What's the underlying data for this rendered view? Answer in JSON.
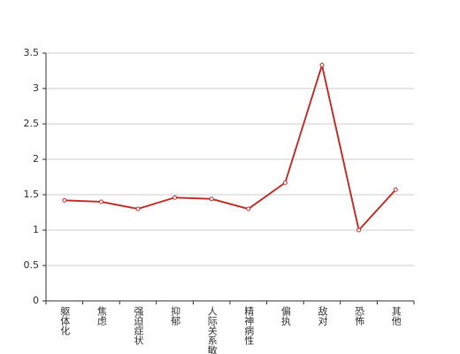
{
  "chart_data": {
    "type": "line",
    "categories": [
      "躯体化",
      "焦虑",
      "强迫症状",
      "抑郁",
      "人际关系敏感",
      "精神病性",
      "偏执",
      "敌对",
      "恐怖",
      "其他"
    ],
    "series": [
      {
        "color": "#c23531",
        "values": [
          1.42,
          1.4,
          1.3,
          1.46,
          1.44,
          1.3,
          1.67,
          3.33,
          1.0,
          1.57
        ]
      }
    ],
    "ylim": [
      0,
      3.5
    ],
    "yticks": [
      0,
      0.5,
      1,
      1.5,
      2,
      2.5,
      3,
      3.5
    ],
    "grid": true
  }
}
